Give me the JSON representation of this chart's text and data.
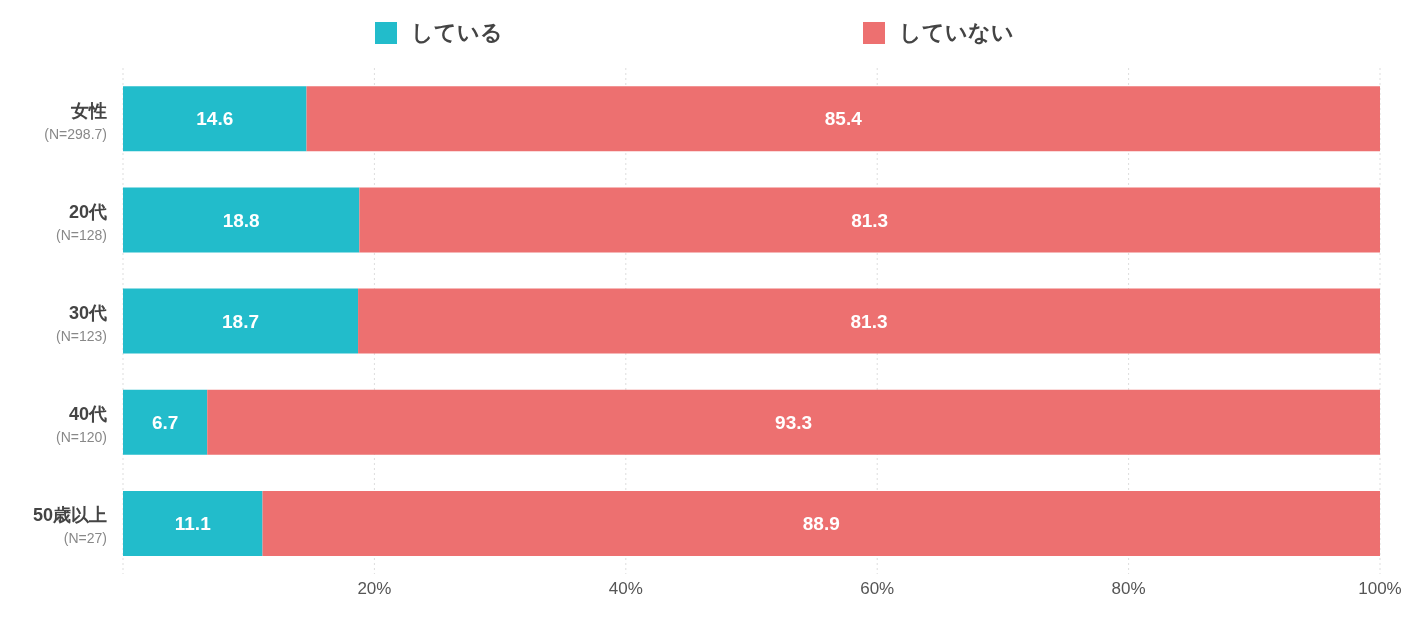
{
  "chart_data": {
    "type": "bar",
    "orientation": "horizontal",
    "stacked": true,
    "categories": [
      "女性\n(N=298.7)",
      "20代\n(N=128)",
      "30代\n(N=123)",
      "40代\n(N=120)",
      "50歳以上\n(N=27)"
    ],
    "series": [
      {
        "name": "している",
        "color": "#22bccb",
        "values": [
          14.6,
          18.8,
          18.7,
          6.7,
          11.1
        ]
      },
      {
        "name": "していない",
        "color": "#ed7070",
        "values": [
          85.4,
          81.3,
          81.3,
          93.3,
          88.9
        ]
      }
    ],
    "xlim": [
      0,
      100
    ],
    "xticks": [
      {
        "value": 20,
        "label": "20%"
      },
      {
        "value": 40,
        "label": "40%"
      },
      {
        "value": 60,
        "label": "60%"
      },
      {
        "value": 80,
        "label": "80%"
      },
      {
        "value": 100,
        "label": "100%"
      }
    ],
    "grid": "x",
    "legend": "top",
    "data_labels": true
  }
}
